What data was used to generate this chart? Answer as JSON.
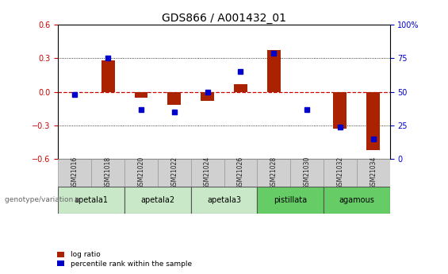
{
  "title": "GDS866 / A001432_01",
  "samples": [
    "GSM21016",
    "GSM21018",
    "GSM21020",
    "GSM21022",
    "GSM21024",
    "GSM21026",
    "GSM21028",
    "GSM21030",
    "GSM21032",
    "GSM21034"
  ],
  "log_ratio": [
    0.0,
    0.28,
    -0.05,
    -0.12,
    -0.08,
    0.07,
    0.37,
    0.0,
    -0.33,
    -0.52
  ],
  "percentile_rank": [
    48,
    75,
    37,
    35,
    50,
    65,
    79,
    37,
    24,
    15
  ],
  "ylim_left": [
    -0.6,
    0.6
  ],
  "yticks_left": [
    -0.6,
    -0.3,
    0.0,
    0.3,
    0.6
  ],
  "ylim_right": [
    0,
    100
  ],
  "yticks_right": [
    0,
    25,
    50,
    75,
    100
  ],
  "bar_color": "#aa2200",
  "dot_color": "#0000cc",
  "zero_line_color": "#cc0000",
  "grid_color": "#000000",
  "groups": [
    {
      "name": "apetala1",
      "start": 0,
      "end": 2,
      "color": "#c8e8c8"
    },
    {
      "name": "apetala2",
      "start": 2,
      "end": 4,
      "color": "#c8e8c8"
    },
    {
      "name": "apetala3",
      "start": 4,
      "end": 6,
      "color": "#c8e8c8"
    },
    {
      "name": "pistillata",
      "start": 6,
      "end": 8,
      "color": "#66cc66"
    },
    {
      "name": "agamous",
      "start": 8,
      "end": 10,
      "color": "#66cc66"
    }
  ],
  "genotype_label": "genotype/variation ▶",
  "legend_bar_label": "log ratio",
  "legend_dot_label": "percentile rank within the sample",
  "title_fontsize": 10,
  "tick_fontsize": 7,
  "bg_color": "#ffffff"
}
